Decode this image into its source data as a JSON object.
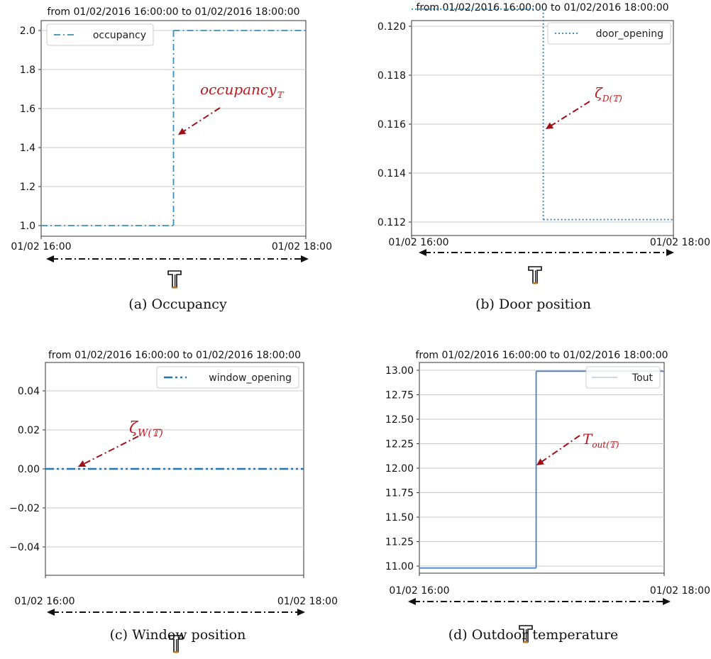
{
  "chart_data": [
    {
      "id": "a",
      "type": "line",
      "title": "from 01/02/2016 16:00:00 to 01/02/2016 18:00:00",
      "caption": "(a) Occupancy",
      "x": [
        "01/02 16:00",
        "01/02 17:00",
        "01/02 17:00",
        "01/02 18:00"
      ],
      "xticks": [
        "01/02 16:00",
        "01/02 18:00"
      ],
      "series": [
        {
          "name": "occupancy",
          "values": [
            1.0,
            1.0,
            2.0,
            2.0
          ],
          "style": "dashdot",
          "color": "#3a8fb7"
        }
      ],
      "ylim": [
        0.97,
        2.05
      ],
      "yticks": [
        "1.0",
        "1.2",
        "1.4",
        "1.6",
        "1.8",
        "2.0"
      ],
      "legend": "top-left",
      "grid": "horizontal",
      "annotation": {
        "text": "occupancy",
        "subscript": "𝕋"
      },
      "interval_symbol": "𝕋"
    },
    {
      "id": "b",
      "type": "line",
      "title": "from 01/02/2016 16:00:00 to 01/02/2016 18:00:00",
      "caption": "(b) Door position",
      "x": [
        "01/02 16:00",
        "01/02 17:00",
        "01/02 17:00",
        "01/02 18:00"
      ],
      "xticks": [
        "01/02 16:00",
        "01/02 18:00"
      ],
      "series": [
        {
          "name": "door_opening",
          "values": [
            0.1207,
            0.1207,
            0.1121,
            0.1121
          ],
          "style": "dotted",
          "color": "#2a7fc0"
        }
      ],
      "ylim": [
        0.1117,
        0.1211
      ],
      "yticks": [
        "0.112",
        "0.114",
        "0.116",
        "0.118",
        "0.120"
      ],
      "legend": "top-right",
      "grid": "horizontal",
      "annotation": {
        "text": "ζ",
        "subscript": "D(𝕋)"
      },
      "interval_symbol": "𝕋"
    },
    {
      "id": "c",
      "type": "line",
      "title": "from 01/02/2016 16:00:00 to 01/02/2016 18:00:00",
      "caption": "(c) Window position",
      "x": [
        "01/02 16:00",
        "01/02 18:00"
      ],
      "xticks": [
        "01/02 16:00",
        "01/02 18:00"
      ],
      "series": [
        {
          "name": "window_opening",
          "values": [
            0.0,
            0.0
          ],
          "style": "dashdotdot",
          "color": "#1f77b4"
        }
      ],
      "ylim": [
        -0.055,
        0.055
      ],
      "yticks": [
        "−0.04",
        "−0.02",
        "0.00",
        "0.02",
        "0.04"
      ],
      "legend": "top-right",
      "grid": "horizontal",
      "annotation": {
        "text": "ζ",
        "subscript": "W(𝕋)"
      },
      "interval_symbol": "𝕋"
    },
    {
      "id": "d",
      "type": "line",
      "title": "from 01/02/2016 16:00:00 to 01/02/2016 18:00:00",
      "caption": "(d) Outdoor temperature",
      "x": [
        "01/02 16:00",
        "01/02 17:00",
        "01/02 17:00",
        "01/02 18:00"
      ],
      "xticks": [
        "01/02 16:00",
        "01/02 18:00"
      ],
      "series": [
        {
          "name": "Tout",
          "values": [
            10.98,
            10.98,
            12.99,
            12.99
          ],
          "style": "solid",
          "color": "#4a7fc0"
        }
      ],
      "ylim": [
        10.95,
        13.04
      ],
      "yticks": [
        "11.00",
        "11.25",
        "11.50",
        "11.75",
        "12.00",
        "12.25",
        "12.50",
        "12.75",
        "13.00"
      ],
      "legend": "top-right",
      "grid": "horizontal",
      "annotation": {
        "text": "T",
        "subscript": "out(𝕋)"
      },
      "interval_symbol": "𝕋"
    }
  ]
}
